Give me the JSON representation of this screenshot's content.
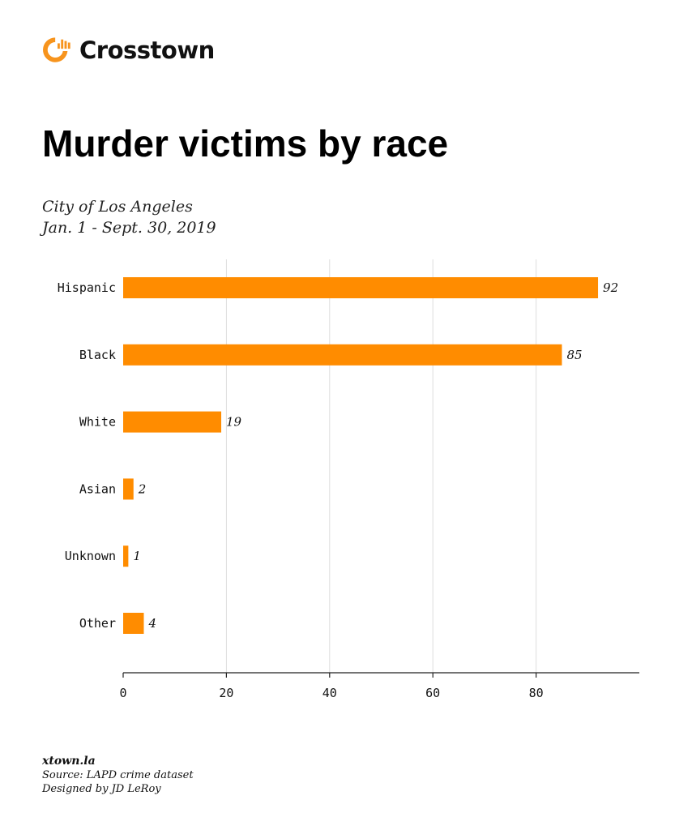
{
  "brand": {
    "name": "Crosstown",
    "icon": "crosstown-logo-icon",
    "color": "#f7941d"
  },
  "title": "Murder victims by race",
  "subtitle_line1": "City of Los Angeles",
  "subtitle_line2": "Jan. 1 - Sept. 30, 2019",
  "footer": {
    "site": "xtown.la",
    "source": "Source: LAPD crime dataset",
    "credit": "Designed by JD LeRoy"
  },
  "chart_data": {
    "type": "bar",
    "orientation": "horizontal",
    "categories": [
      "Hispanic",
      "Black",
      "White",
      "Asian",
      "Unknown",
      "Other"
    ],
    "values": [
      92,
      85,
      19,
      2,
      1,
      4
    ],
    "xlim": [
      0,
      100
    ],
    "xticks": [
      0,
      20,
      40,
      60,
      80
    ],
    "grid": true,
    "bar_color": "#ff8c00",
    "title": "",
    "xlabel": "",
    "ylabel": ""
  }
}
